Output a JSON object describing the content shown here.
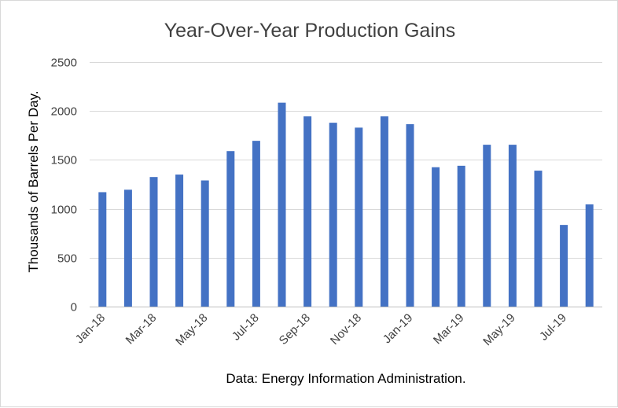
{
  "chart_data": {
    "type": "bar",
    "title": "Year-Over-Year Production Gains",
    "ylabel": "Thousands of Barrels Per Day.",
    "xlabel": "Data: Energy Information Administration.",
    "ylim": [
      0,
      2500
    ],
    "yticks": [
      "0",
      "500",
      "1000",
      "1500",
      "2000",
      "2500"
    ],
    "grid": true,
    "categories": [
      "Jan-18",
      "Feb-18",
      "Mar-18",
      "Apr-18",
      "May-18",
      "Jun-18",
      "Jul-18",
      "Aug-18",
      "Sep-18",
      "Oct-18",
      "Nov-18",
      "Dec-18",
      "Jan-19",
      "Feb-19",
      "Mar-19",
      "Apr-19",
      "May-19",
      "Jun-19",
      "Jul-19",
      "Aug-19"
    ],
    "visible_category_labels": [
      "Jan-18",
      "Mar-18",
      "May-18",
      "Jul-18",
      "Sep-18",
      "Nov-18",
      "Jan-19",
      "Mar-19",
      "May-19",
      "Jul-19"
    ],
    "values": [
      1170,
      1195,
      1325,
      1350,
      1290,
      1590,
      1695,
      2085,
      1945,
      1880,
      1830,
      1945,
      1865,
      1425,
      1440,
      1655,
      1655,
      1390,
      835,
      1045
    ],
    "bar_color": "#4472c4"
  }
}
